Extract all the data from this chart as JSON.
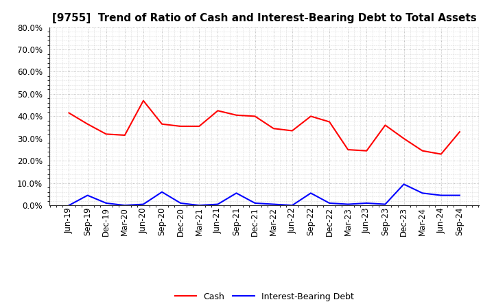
{
  "title": "[9755]  Trend of Ratio of Cash and Interest-Bearing Debt to Total Assets",
  "x_labels": [
    "Jun-19",
    "Sep-19",
    "Dec-19",
    "Mar-20",
    "Jun-20",
    "Sep-20",
    "Dec-20",
    "Mar-21",
    "Jun-21",
    "Sep-21",
    "Dec-21",
    "Mar-22",
    "Jun-22",
    "Sep-22",
    "Dec-22",
    "Mar-23",
    "Jun-23",
    "Sep-23",
    "Dec-23",
    "Mar-24",
    "Jun-24",
    "Sep-24"
  ],
  "cash": [
    0.415,
    0.365,
    0.32,
    0.315,
    0.47,
    0.365,
    0.355,
    0.355,
    0.425,
    0.405,
    0.4,
    0.345,
    0.335,
    0.4,
    0.375,
    0.25,
    0.245,
    0.36,
    0.3,
    0.245,
    0.23,
    0.33
  ],
  "debt": [
    0.0,
    0.045,
    0.01,
    0.0,
    0.005,
    0.06,
    0.01,
    0.0,
    0.005,
    0.055,
    0.01,
    0.005,
    0.0,
    0.055,
    0.01,
    0.005,
    0.01,
    0.005,
    0.095,
    0.055,
    0.045,
    0.045
  ],
  "cash_color": "#ff0000",
  "debt_color": "#0000ff",
  "background_color": "#ffffff",
  "grid_color": "#999999",
  "ylim": [
    0.0,
    0.8
  ],
  "yticks": [
    0.0,
    0.1,
    0.2,
    0.3,
    0.4,
    0.5,
    0.6,
    0.7,
    0.8
  ],
  "legend_cash": "Cash",
  "legend_debt": "Interest-Bearing Debt",
  "title_fontsize": 11,
  "tick_fontsize": 8.5,
  "ytick_fontsize": 8.5
}
